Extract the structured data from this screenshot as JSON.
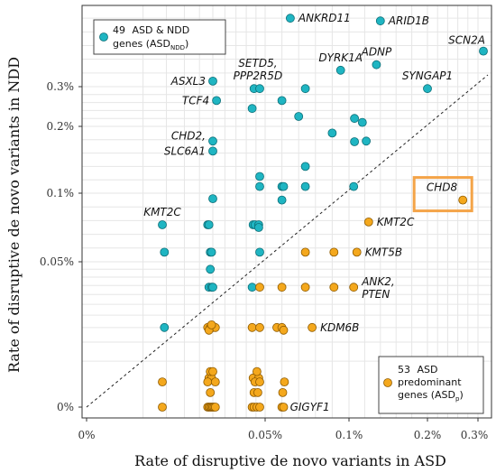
{
  "chart_data": {
    "type": "scatter",
    "xlabel": "Rate of disruptive de novo variants in ASD",
    "ylabel": "Rate of disruptive de novo variants in NDD",
    "x_ticks": [
      {
        "v": 0,
        "label": "0%"
      },
      {
        "v": 0.05,
        "label": "0.05%"
      },
      {
        "v": 0.1,
        "label": "0.1%"
      },
      {
        "v": 0.2,
        "label": "0.2%"
      },
      {
        "v": 0.3,
        "label": "0.3%"
      }
    ],
    "y_ticks": [
      {
        "v": 0,
        "label": "0%"
      },
      {
        "v": 0.05,
        "label": "0.05%"
      },
      {
        "v": 0.1,
        "label": "0.1%"
      },
      {
        "v": 0.2,
        "label": "0.2%"
      },
      {
        "v": 0.3,
        "label": "0.3%"
      }
    ],
    "diagonal": "y = x (dotted)",
    "legend": {
      "ndd": {
        "count": "49",
        "line1": "ASD & NDD",
        "line2": "genes (ASD",
        "sub": "NDD",
        "close": ")"
      },
      "asd": {
        "count": "53",
        "line1": "ASD",
        "line2": "predominant",
        "line3": "genes (ASD",
        "sub": "p",
        "close": ")"
      }
    },
    "series": [
      {
        "name": "ASD & NDD genes",
        "color": "#1fb5c2",
        "points": [
          [
            0.065,
            0.55
          ],
          [
            0.14,
            0.54
          ],
          [
            0.32,
            0.43
          ],
          [
            0.095,
            0.36
          ],
          [
            0.135,
            0.38
          ],
          [
            0.025,
            0.32
          ],
          [
            0.044,
            0.295
          ],
          [
            0.047,
            0.295
          ],
          [
            0.2,
            0.295
          ],
          [
            0.074,
            0.295
          ],
          [
            0.0265,
            0.265
          ],
          [
            0.06,
            0.265
          ],
          [
            0.043,
            0.245
          ],
          [
            0.07,
            0.225
          ],
          [
            0.107,
            0.22
          ],
          [
            0.117,
            0.21
          ],
          [
            0.09,
            0.19
          ],
          [
            0.025,
            0.178
          ],
          [
            0.107,
            0.177
          ],
          [
            0.122,
            0.178
          ],
          [
            0.025,
            0.163
          ],
          [
            0.074,
            0.14
          ],
          [
            0.047,
            0.125
          ],
          [
            0.047,
            0.11
          ],
          [
            0.06,
            0.11
          ],
          [
            0.061,
            0.11
          ],
          [
            0.074,
            0.11
          ],
          [
            0.106,
            0.11
          ],
          [
            0.025,
            0.096
          ],
          [
            0.06,
            0.095
          ],
          [
            0.009,
            0.077
          ],
          [
            0.023,
            0.077
          ],
          [
            0.0235,
            0.077
          ],
          [
            0.0435,
            0.077
          ],
          [
            0.0445,
            0.077
          ],
          [
            0.0465,
            0.077
          ],
          [
            0.0465,
            0.075
          ],
          [
            0.0095,
            0.057
          ],
          [
            0.024,
            0.057
          ],
          [
            0.0245,
            0.057
          ],
          [
            0.047,
            0.057
          ],
          [
            0.024,
            0.045
          ],
          [
            0.0235,
            0.034
          ],
          [
            0.0245,
            0.034
          ],
          [
            0.025,
            0.034
          ],
          [
            0.043,
            0.034
          ],
          [
            0.0095,
            0.015
          ],
          [
            0.0235,
            0.015
          ],
          [
            0.024,
            0.015
          ]
        ]
      },
      {
        "name": "ASD predominant genes",
        "color": "#f4a81d",
        "points": [
          [
            0.27,
            0.095
          ],
          [
            0.125,
            0.079
          ],
          [
            0.074,
            0.057
          ],
          [
            0.091,
            0.057
          ],
          [
            0.11,
            0.057
          ],
          [
            0.047,
            0.034
          ],
          [
            0.06,
            0.034
          ],
          [
            0.074,
            0.034
          ],
          [
            0.091,
            0.034
          ],
          [
            0.106,
            0.034
          ],
          [
            0.023,
            0.015
          ],
          [
            0.024,
            0.015
          ],
          [
            0.025,
            0.015
          ],
          [
            0.026,
            0.015
          ],
          [
            0.0235,
            0.014
          ],
          [
            0.043,
            0.015
          ],
          [
            0.047,
            0.015
          ],
          [
            0.057,
            0.015
          ],
          [
            0.06,
            0.015
          ],
          [
            0.061,
            0.014
          ],
          [
            0.078,
            0.015
          ],
          [
            0.0245,
            0.016
          ],
          [
            0.009,
            0.0
          ],
          [
            0.023,
            0.0
          ],
          [
            0.0235,
            0.0
          ],
          [
            0.024,
            0.0
          ],
          [
            0.0245,
            0.0
          ],
          [
            0.025,
            0.0
          ],
          [
            0.0255,
            0.0
          ],
          [
            0.026,
            0.0
          ],
          [
            0.0235,
            0.002
          ],
          [
            0.0245,
            0.002
          ],
          [
            0.043,
            0.0
          ],
          [
            0.044,
            0.0
          ],
          [
            0.0455,
            0.0
          ],
          [
            0.047,
            0.0
          ],
          [
            0.0435,
            0.002
          ],
          [
            0.0465,
            0.002
          ],
          [
            0.06,
            0.0
          ],
          [
            0.061,
            0.0
          ],
          [
            0.0455,
            0.003
          ],
          [
            0.024,
            0.003
          ],
          [
            0.023,
            0.0015
          ],
          [
            0.026,
            0.0015
          ],
          [
            0.0445,
            0.0015
          ],
          [
            0.047,
            0.0015
          ],
          [
            0.0615,
            0.0015
          ],
          [
            0.025,
            0.003
          ],
          [
            0.024,
            0.0005
          ],
          [
            0.044,
            0.0005
          ],
          [
            0.046,
            0.0005
          ],
          [
            0.0605,
            0.0005
          ],
          [
            0.009,
            0.0015
          ]
        ]
      }
    ],
    "gene_labels": [
      {
        "text": "ANKRD11",
        "x": 0.065,
        "y": 0.55,
        "pos": "right"
      },
      {
        "text": "ARID1B",
        "x": 0.14,
        "y": 0.54,
        "pos": "right"
      },
      {
        "text": "SCN2A",
        "x": 0.32,
        "y": 0.43,
        "pos": "left-up"
      },
      {
        "text": "DYRK1A",
        "x": 0.095,
        "y": 0.36,
        "pos": "up"
      },
      {
        "text": "ADNP",
        "x": 0.135,
        "y": 0.38,
        "pos": "up"
      },
      {
        "text": "SETD5,",
        "x": 0.046,
        "y": 0.295,
        "pos": "up2"
      },
      {
        "text": "PPP2R5D",
        "x": 0.046,
        "y": 0.295,
        "pos": "up"
      },
      {
        "text": "ASXL3",
        "x": 0.025,
        "y": 0.32,
        "pos": "left"
      },
      {
        "text": "SYNGAP1",
        "x": 0.2,
        "y": 0.295,
        "pos": "up"
      },
      {
        "text": "TCF4",
        "x": 0.0265,
        "y": 0.265,
        "pos": "left"
      },
      {
        "text": "CHD2,",
        "x": 0.025,
        "y": 0.178,
        "pos": "left"
      },
      {
        "text": "SLC6A1",
        "x": 0.025,
        "y": 0.163,
        "pos": "left"
      },
      {
        "text": "KMT2C",
        "x": 0.009,
        "y": 0.077,
        "pos": "up"
      },
      {
        "text": "KMT2C",
        "x": 0.125,
        "y": 0.079,
        "pos": "right"
      },
      {
        "text": "KMT5B",
        "x": 0.11,
        "y": 0.057,
        "pos": "right"
      },
      {
        "text": "ANK2,",
        "x": 0.106,
        "y": 0.034,
        "pos": "right-up"
      },
      {
        "text": "PTEN",
        "x": 0.106,
        "y": 0.034,
        "pos": "right-down"
      },
      {
        "text": "KDM6B",
        "x": 0.078,
        "y": 0.015,
        "pos": "right"
      },
      {
        "text": "GIGYF1",
        "x": 0.06,
        "y": 0.0,
        "pos": "right"
      },
      {
        "text": "CHD8",
        "x": 0.27,
        "y": 0.095,
        "pos": "left-up"
      }
    ],
    "highlight_gene": "CHD8",
    "grid": true,
    "scale": "pseudo-log"
  }
}
